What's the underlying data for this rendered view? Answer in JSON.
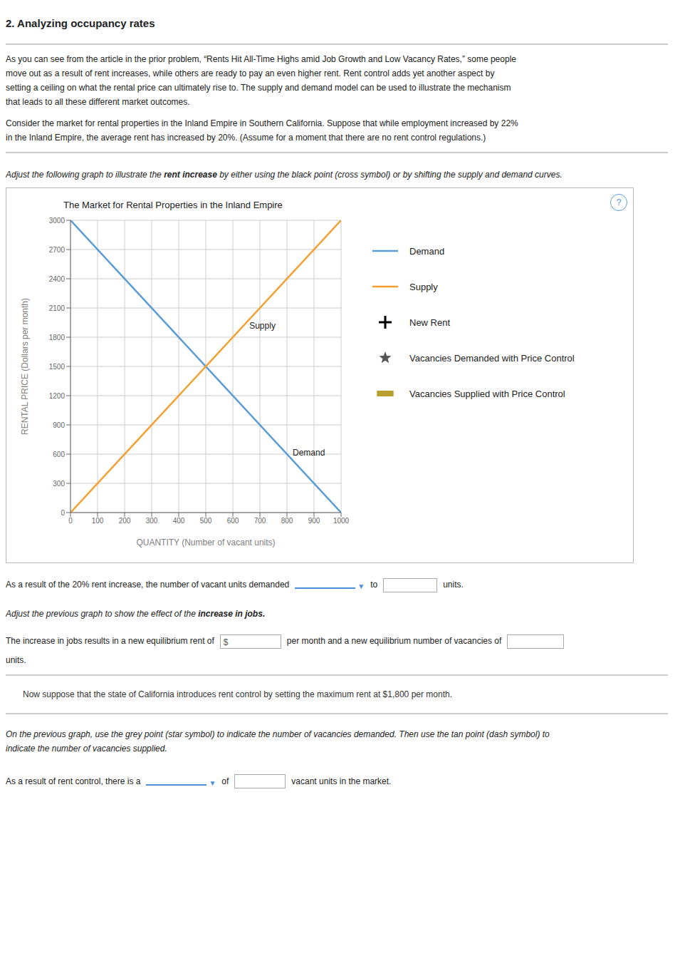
{
  "title": "2. Analyzing occupancy rates",
  "annotations": [
    "As you can see from the article in the prior problem, “Rents Hit All-Time Highs amid Job Growth and Low Vacancy Rates,” some people",
    "move out as a result of rent increases, while others are ready to pay an even higher rent. Rent control adds yet another aspect by",
    "setting a ceiling on what the rental price can ultimately rise to. The supply and demand model can be used to illustrate the mechanism",
    "that leads to all these different market outcomes.",
    "Consider the market for rental properties in the Inland Empire in Southern California. Suppose that while employment increased by 22%",
    "in the Inland Empire, the average rent has increased by 20%. (Assume for a moment that there are no rent control regulations.)",
    [
      "Adjust the following graph to illustrate the ",
      "rent increase",
      " by either using the black point (cross symbol) or by shifting the supply and demand curves."
    ],
    "?",
    [
      "As a result of the 20% rent increase, the number of vacant units demanded",
      "▼",
      "to",
      "units."
    ],
    [
      "Adjust the previous graph to show the effect of the ",
      "increase in jobs."
    ],
    [
      "The increase in jobs results in a new equilibrium rent of",
      "$",
      "per month and a new equilibrium number of vacancies of",
      "units."
    ],
    "Now suppose that the state of California introduces rent control by setting the maximum rent at $1,800 per month.",
    "On the previous graph, use the grey point (star symbol) to indicate the number of vacancies demanded. Then use the tan point (dash symbol) to",
    "indicate the number of vacancies supplied.",
    [
      "As a result of rent control, there is a",
      "▼",
      "of",
      "vacant units in the market."
    ]
  ],
  "chart_data": {
    "type": "line",
    "title": "The Market for Rental Properties in the Inland Empire",
    "x_label": "QUANTITY (Number of vacant units)",
    "y_label": "RENTAL PRICE (Dollars per month)",
    "x": [
      0,
      1000
    ],
    "series": [
      {
        "name": "Demand",
        "color": "#5b9bd5",
        "values": [
          3000,
          0
        ]
      },
      {
        "name": "Supply",
        "color": "#f4a030",
        "values": [
          0,
          3000
        ]
      },
      {
        "name": "New Rent",
        "color": "#000000",
        "marker": "cross",
        "values": [
          null,
          null
        ]
      },
      {
        "name": "Vacancies Demanded with Price Control",
        "color": "#555555",
        "marker": "star",
        "values": [
          null,
          null
        ]
      },
      {
        "name": "Vacancies Supplied with Price Control",
        "color": "#b8a030",
        "marker": "dash",
        "values": [
          null,
          null
        ]
      }
    ],
    "xlim": [
      0,
      1000
    ],
    "ylim": [
      0,
      3000
    ],
    "xticks": [
      0,
      100,
      200,
      300,
      400,
      500,
      600,
      700,
      800,
      900,
      1000
    ],
    "yticks": [
      0,
      300,
      600,
      900,
      1200,
      1500,
      1800,
      2100,
      2400,
      2700,
      3000
    ],
    "grid": true,
    "legend": "right",
    "annotations": [
      {
        "text": "Supply",
        "x": 640,
        "y": 1920
      },
      {
        "text": "Demand",
        "x": 800,
        "y": 620
      }
    ]
  }
}
